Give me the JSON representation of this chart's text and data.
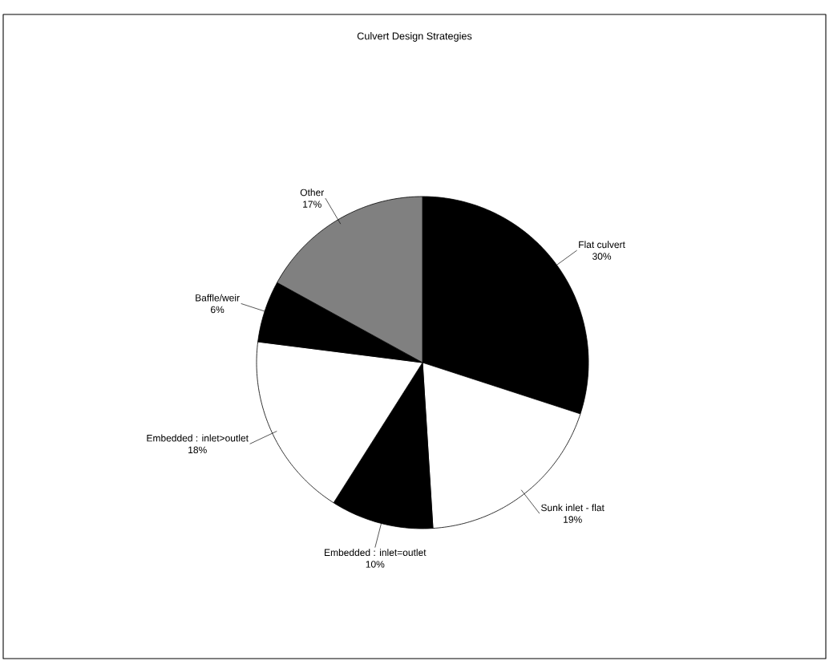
{
  "chart_data": {
    "type": "pie",
    "title": "Culvert Design Strategies",
    "categories": [
      "Flat culvert",
      "Sunk inlet - flat",
      "Embedded : inlet=outlet",
      "Embedded : inlet>outlet",
      "Baffle/weir",
      "Other"
    ],
    "values": [
      30,
      19,
      10,
      18,
      6,
      17
    ],
    "value_labels": [
      "30%",
      "19%",
      "10%",
      "18%",
      "6%",
      "17%"
    ],
    "colors": [
      "#000000",
      "#ffffff",
      "#000000",
      "#ffffff",
      "#000000",
      "#808080"
    ]
  }
}
